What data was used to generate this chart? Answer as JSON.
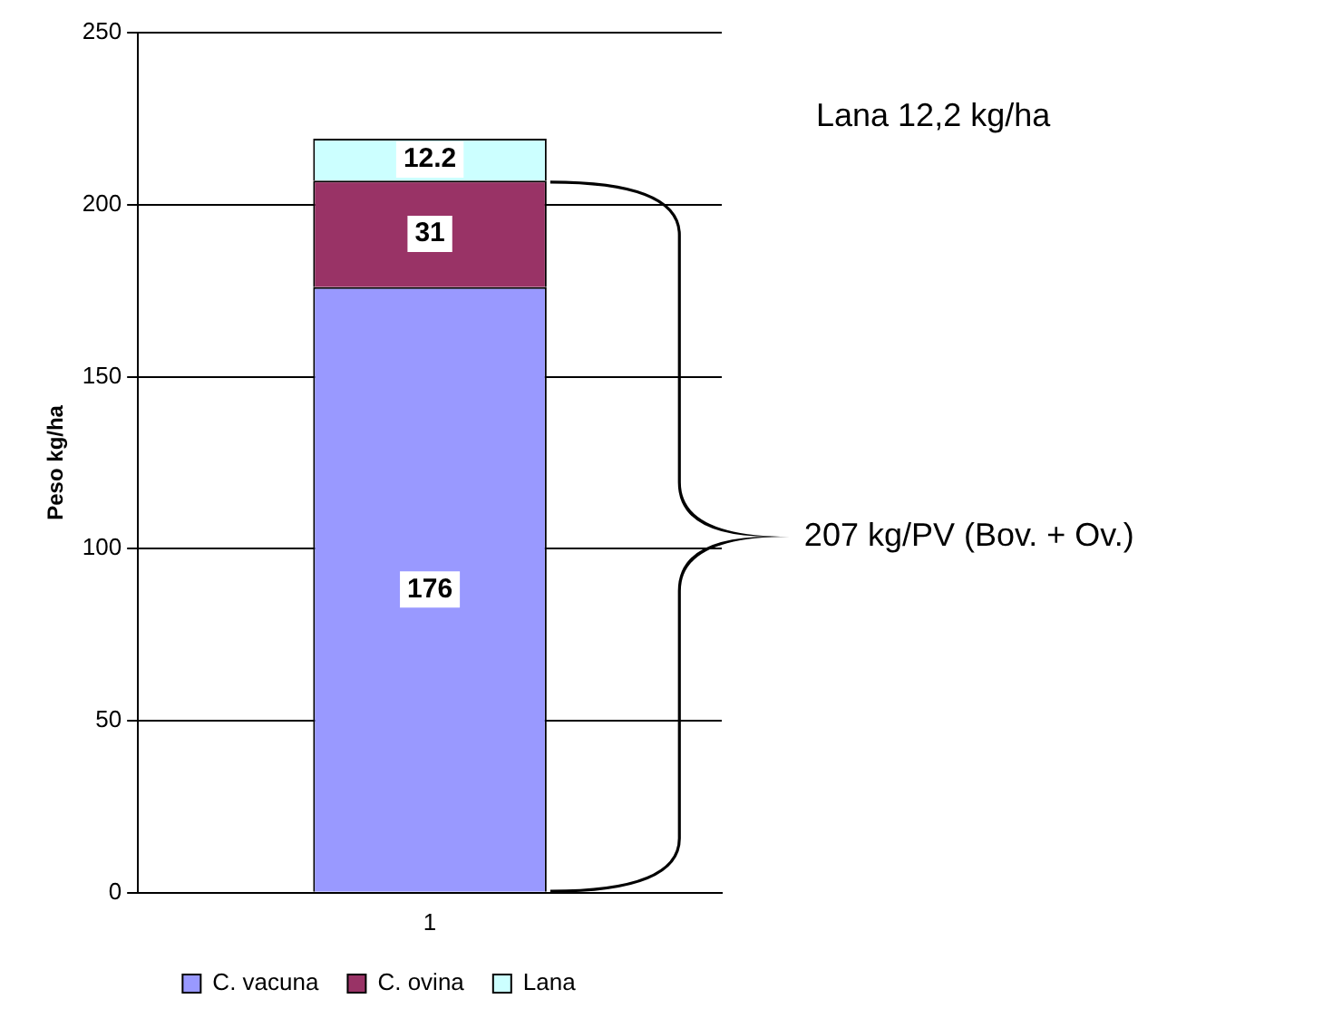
{
  "chart_data": {
    "type": "bar",
    "stacked": true,
    "categories": [
      "1"
    ],
    "ylabel": "Peso kg/ha",
    "series": [
      {
        "name": "C. vacuna",
        "color": "#9999ff",
        "values": [
          176
        ]
      },
      {
        "name": "C. ovina",
        "color": "#993366",
        "values": [
          31
        ]
      },
      {
        "name": "Lana",
        "color": "#ccffff",
        "values": [
          12.2
        ]
      }
    ],
    "ylim": [
      0,
      250
    ],
    "yticks": [
      0,
      50,
      100,
      150,
      200,
      250
    ],
    "grid": "y",
    "legend": "bottom",
    "data_labels": true,
    "annotations": [
      "Lana 12,2 kg/ha",
      "207 kg/PV (Bov. + Ov.)"
    ]
  }
}
